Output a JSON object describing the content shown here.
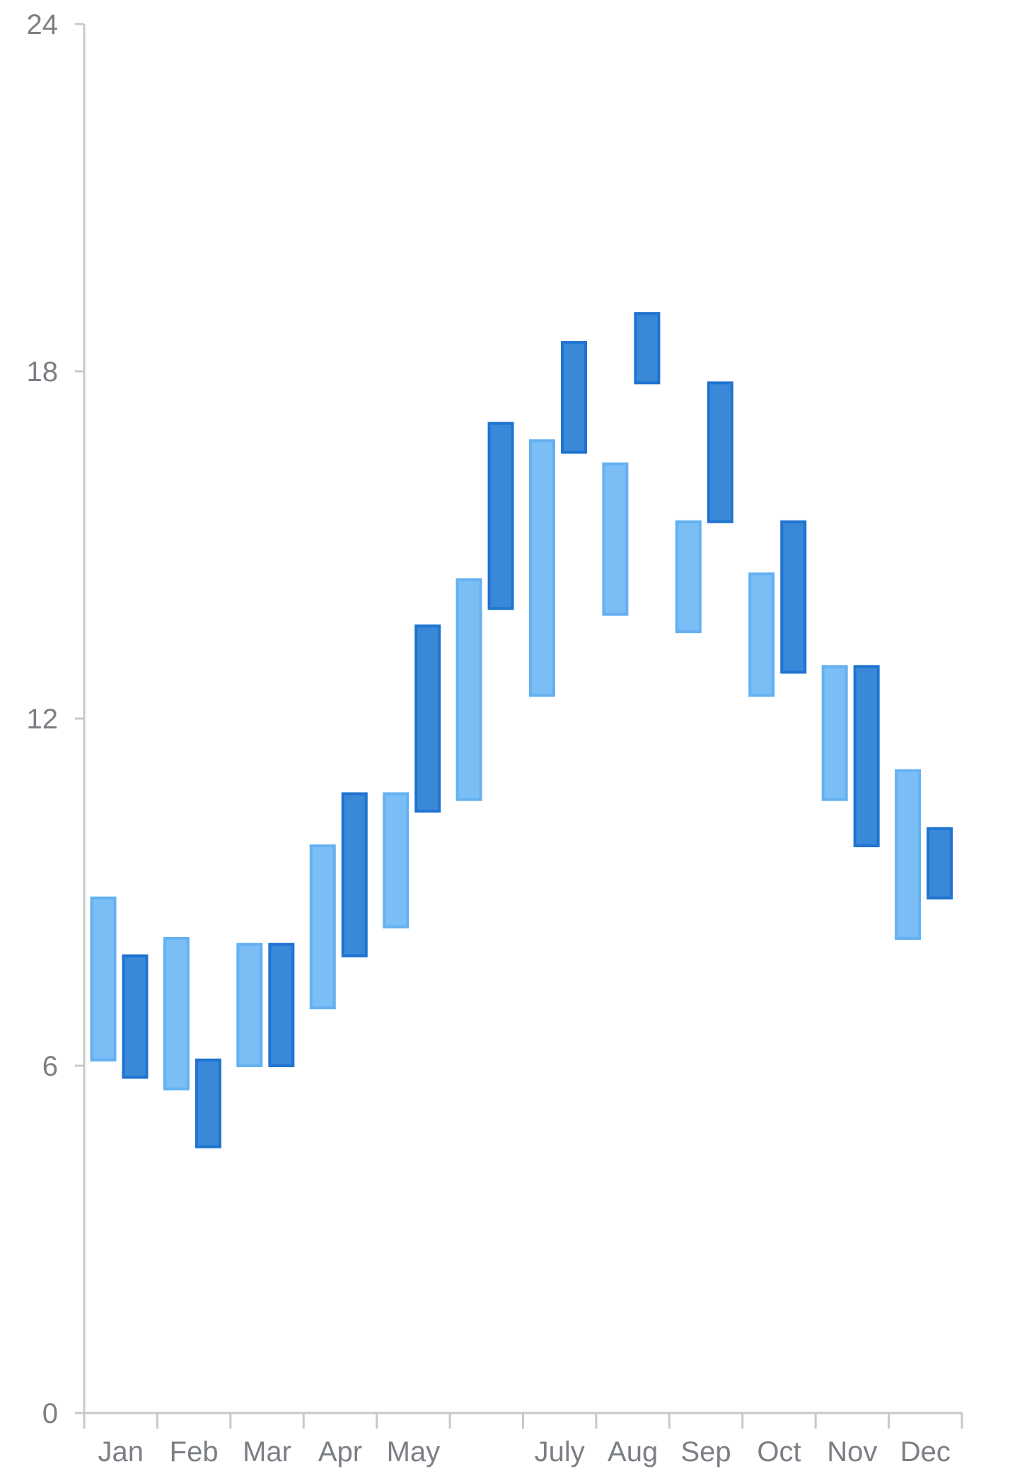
{
  "colors": {
    "series_a_fill": "#7bbdf5",
    "series_a_stroke": "#64b1f2",
    "series_b_fill": "#3a88d8",
    "series_b_stroke": "#1f73d1",
    "axis": "#c8c8c8",
    "tick_text": "#7b7f85",
    "background": "#ffffff"
  },
  "chart_data": {
    "type": "floating-bar",
    "title": "",
    "xlabel": "",
    "ylabel": "",
    "ylim": [
      0,
      24
    ],
    "y_ticks": [
      0,
      6,
      12,
      18,
      24
    ],
    "grid": false,
    "legend": "none",
    "categories": [
      "Jan",
      "Feb",
      "Mar",
      "Apr",
      "May",
      "",
      "July",
      "Aug",
      "Sep",
      "Oct",
      "Nov",
      "Dec"
    ],
    "series": [
      {
        "color": "#7bbdf5",
        "ranges": [
          [
            6.1,
            8.9
          ],
          [
            5.6,
            8.2
          ],
          [
            6.0,
            8.1
          ],
          [
            7.0,
            9.8
          ],
          [
            8.4,
            10.7
          ],
          [
            10.6,
            14.4
          ],
          [
            12.4,
            16.8
          ],
          [
            13.8,
            16.4
          ],
          [
            13.5,
            15.4
          ],
          [
            12.4,
            14.5
          ],
          [
            10.6,
            12.9
          ],
          [
            8.2,
            11.1
          ]
        ]
      },
      {
        "color": "#3a88d8",
        "ranges": [
          [
            5.8,
            7.9
          ],
          [
            4.6,
            6.1
          ],
          [
            6.0,
            8.1
          ],
          [
            7.9,
            10.7
          ],
          [
            10.4,
            13.6
          ],
          [
            13.9,
            17.1
          ],
          [
            16.6,
            18.5
          ],
          [
            17.8,
            19.0
          ],
          [
            15.4,
            17.8
          ],
          [
            12.8,
            15.4
          ],
          [
            9.8,
            12.9
          ],
          [
            8.9,
            10.1
          ]
        ]
      }
    ]
  }
}
